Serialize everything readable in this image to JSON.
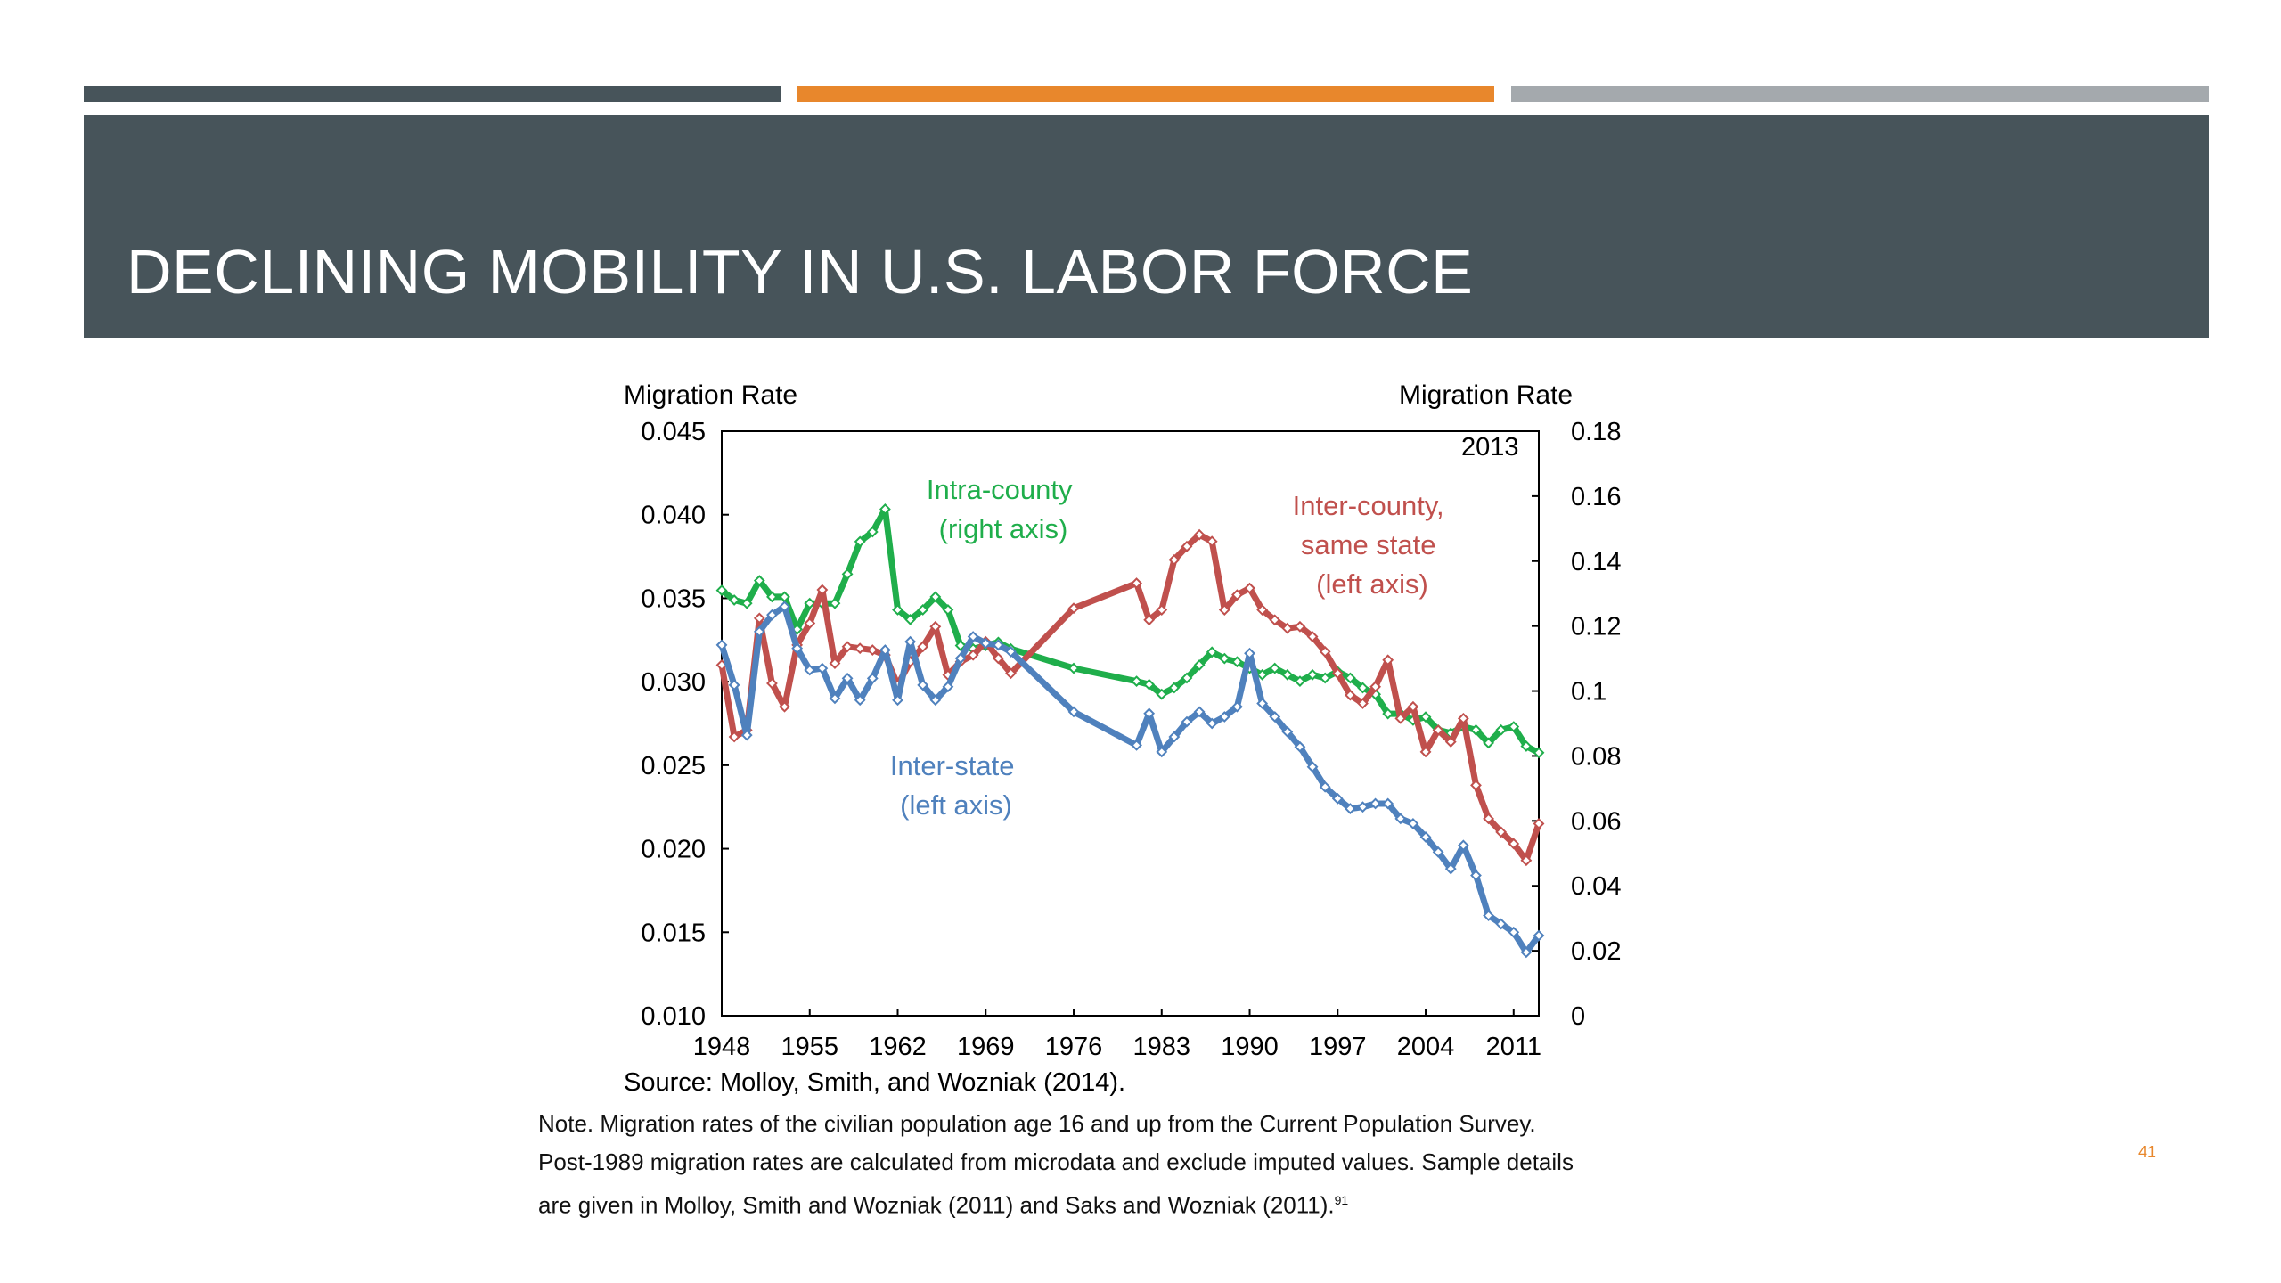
{
  "slide": {
    "title": "DECLINING MOBILITY IN U.S. LABOR FORCE",
    "page_number": "41",
    "note_lines": [
      "Note. Migration rates of the civilian population age 16 and up from the Current Population Survey.",
      "Post-1989 migration rates are calculated from microdata and exclude imputed values.  Sample details",
      "are given in Molloy, Smith and Wozniak (2011) and Saks and Wozniak (2011).",
      "91"
    ],
    "colors": {
      "dark_bar": "#47545a",
      "accent_bar": "#e8872c",
      "light_bar": "#a4a9ad"
    }
  },
  "chart_data": {
    "type": "line",
    "left_axis_title": "Migration Rate",
    "right_axis_title": "Migration Rate",
    "corner_label": "2013",
    "source": "Source: Molloy, Smith, and Wozniak (2014).",
    "xlim": [
      1948,
      2013
    ],
    "ylim_left": [
      0.01,
      0.045
    ],
    "ylim_right": [
      0,
      0.18
    ],
    "x_ticks": [
      "1948",
      "1955",
      "1962",
      "1969",
      "1976",
      "1983",
      "1990",
      "1997",
      "2004",
      "2011"
    ],
    "left_ticks": [
      "0.045",
      "0.040",
      "0.035",
      "0.030",
      "0.025",
      "0.020",
      "0.015",
      "0.010"
    ],
    "right_ticks": [
      "0.18",
      "0.16",
      "0.14",
      "0.12",
      "0.1",
      "0.08",
      "0.06",
      "0.04",
      "0.02",
      "0"
    ],
    "grid": false,
    "series": [
      {
        "name": "Intra-county",
        "label_lines": [
          "Intra-county",
          "(right axis)"
        ],
        "axis": "right",
        "color": "#1fae4b",
        "x": [
          1948,
          1949,
          1950,
          1951,
          1952,
          1953,
          1954,
          1955,
          1956,
          1957,
          1958,
          1959,
          1960,
          1961,
          1962,
          1963,
          1964,
          1965,
          1966,
          1967,
          1968,
          1969,
          1970,
          1971,
          1976,
          1981,
          1982,
          1983,
          1984,
          1985,
          1986,
          1987,
          1988,
          1989,
          1990,
          1991,
          1992,
          1993,
          1994,
          1995,
          1996,
          1997,
          1998,
          1999,
          2000,
          2001,
          2002,
          2003,
          2004,
          2005,
          2006,
          2007,
          2008,
          2009,
          2010,
          2011,
          2012,
          2013
        ],
        "values": [
          0.131,
          0.128,
          0.127,
          0.134,
          0.129,
          0.129,
          0.119,
          0.127,
          0.127,
          0.127,
          0.136,
          0.146,
          0.149,
          0.156,
          0.125,
          0.122,
          0.125,
          0.129,
          0.125,
          0.114,
          0.113,
          0.114,
          0.115,
          0.113,
          0.107,
          0.103,
          0.102,
          0.099,
          0.101,
          0.104,
          0.108,
          0.112,
          0.11,
          0.109,
          0.107,
          0.105,
          0.107,
          0.105,
          0.103,
          0.105,
          0.104,
          0.106,
          0.104,
          0.101,
          0.099,
          0.093,
          0.093,
          0.091,
          0.092,
          0.088,
          0.087,
          0.089,
          0.088,
          0.084,
          0.088,
          0.089,
          0.083,
          0.081
        ]
      },
      {
        "name": "Inter-county, same state",
        "label_lines": [
          "Inter-county,",
          "same state",
          "(left axis)"
        ],
        "axis": "left",
        "color": "#c0504d",
        "x": [
          1948,
          1949,
          1950,
          1951,
          1952,
          1953,
          1954,
          1955,
          1956,
          1957,
          1958,
          1959,
          1960,
          1961,
          1962,
          1963,
          1964,
          1965,
          1966,
          1967,
          1968,
          1969,
          1970,
          1971,
          1976,
          1981,
          1982,
          1983,
          1984,
          1985,
          1986,
          1987,
          1988,
          1989,
          1990,
          1991,
          1992,
          1993,
          1994,
          1995,
          1996,
          1997,
          1998,
          1999,
          2000,
          2001,
          2002,
          2003,
          2004,
          2005,
          2006,
          2007,
          2008,
          2009,
          2010,
          2011,
          2012,
          2013
        ],
        "values": [
          0.031,
          0.0267,
          0.0271,
          0.0338,
          0.0299,
          0.0285,
          0.0322,
          0.0335,
          0.0355,
          0.0311,
          0.0321,
          0.032,
          0.0319,
          0.0316,
          0.0298,
          0.0312,
          0.0321,
          0.0333,
          0.0304,
          0.0312,
          0.0316,
          0.0324,
          0.0314,
          0.0305,
          0.0344,
          0.0359,
          0.0337,
          0.0343,
          0.0373,
          0.0381,
          0.0388,
          0.0384,
          0.0343,
          0.0352,
          0.0356,
          0.0343,
          0.0337,
          0.0332,
          0.0333,
          0.0327,
          0.0318,
          0.0305,
          0.0292,
          0.0287,
          0.0297,
          0.0313,
          0.0278,
          0.0285,
          0.0258,
          0.0271,
          0.0264,
          0.0278,
          0.0238,
          0.0218,
          0.021,
          0.0203,
          0.0193,
          0.0215
        ]
      },
      {
        "name": "Inter-state",
        "label_lines": [
          "Inter-state",
          "(left axis)"
        ],
        "axis": "left",
        "color": "#4f81bd",
        "x": [
          1948,
          1949,
          1950,
          1951,
          1952,
          1953,
          1954,
          1955,
          1956,
          1957,
          1958,
          1959,
          1960,
          1961,
          1962,
          1963,
          1964,
          1965,
          1966,
          1967,
          1968,
          1969,
          1970,
          1971,
          1976,
          1981,
          1982,
          1983,
          1984,
          1985,
          1986,
          1987,
          1988,
          1989,
          1990,
          1991,
          1992,
          1993,
          1994,
          1995,
          1996,
          1997,
          1998,
          1999,
          2000,
          2001,
          2002,
          2003,
          2004,
          2005,
          2006,
          2007,
          2008,
          2009,
          2010,
          2011,
          2012,
          2013
        ],
        "values": [
          0.0322,
          0.0298,
          0.0268,
          0.033,
          0.034,
          0.0345,
          0.032,
          0.0307,
          0.0308,
          0.029,
          0.0302,
          0.0289,
          0.0302,
          0.0319,
          0.0289,
          0.0324,
          0.0298,
          0.0289,
          0.0297,
          0.0314,
          0.0327,
          0.0323,
          0.0322,
          0.0318,
          0.0282,
          0.0262,
          0.0281,
          0.0258,
          0.0267,
          0.0276,
          0.0282,
          0.0275,
          0.0279,
          0.0285,
          0.0317,
          0.0287,
          0.0279,
          0.027,
          0.0261,
          0.0249,
          0.0237,
          0.023,
          0.0224,
          0.0225,
          0.0227,
          0.0227,
          0.0218,
          0.0215,
          0.0207,
          0.0198,
          0.0188,
          0.0202,
          0.0184,
          0.016,
          0.0155,
          0.015,
          0.0138,
          0.0148
        ]
      }
    ]
  }
}
